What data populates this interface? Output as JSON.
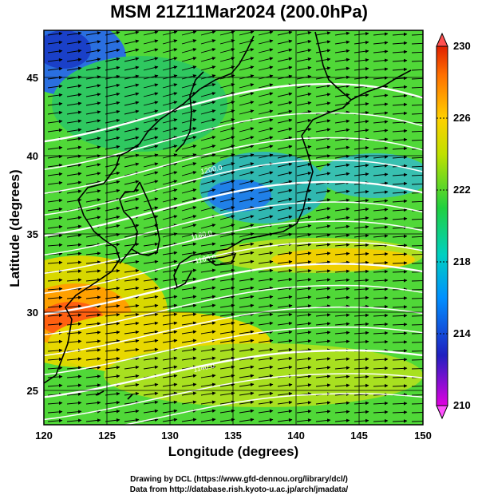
{
  "title": "MSM 21Z11Mar2024 (200.0hPa)",
  "xlabel": "Longitude (degrees)",
  "ylabel": "Latitude  (degrees)",
  "credits": [
    "Drawing by DCL (https://www.gfd-dennou.org/library/dcl/)",
    "Data from http://database.rish.kyoto-u.ac.jp/arch/jmadata/"
  ],
  "map": {
    "lon_range": [
      120,
      150
    ],
    "lat_range": [
      22.4,
      47.6
    ],
    "x_ticks": [
      "120",
      "125",
      "130",
      "135",
      "140",
      "145",
      "150"
    ],
    "y_ticks": [
      "25",
      "30",
      "35",
      "40",
      "45"
    ],
    "grid": true
  },
  "colorbar": {
    "range": [
      210,
      230
    ],
    "tick_labels": [
      "230",
      "226",
      "222",
      "218",
      "214",
      "210"
    ],
    "colors": [
      "#e000e0",
      "#2020c0",
      "#0090ff",
      "#00d0c0",
      "#20d040",
      "#c0e000",
      "#ffd000",
      "#ff7000",
      "#e02000"
    ]
  },
  "contour_labels": [
    "1200.0",
    "1180.0",
    "1160.0",
    "1140.0"
  ],
  "colors": {
    "coast": "#000000",
    "contour": "#ffffff",
    "wind": "#000000"
  },
  "icons": {
    "wind_vectors": "arrow-icon",
    "colorbar_ends": "triangle-icon"
  }
}
